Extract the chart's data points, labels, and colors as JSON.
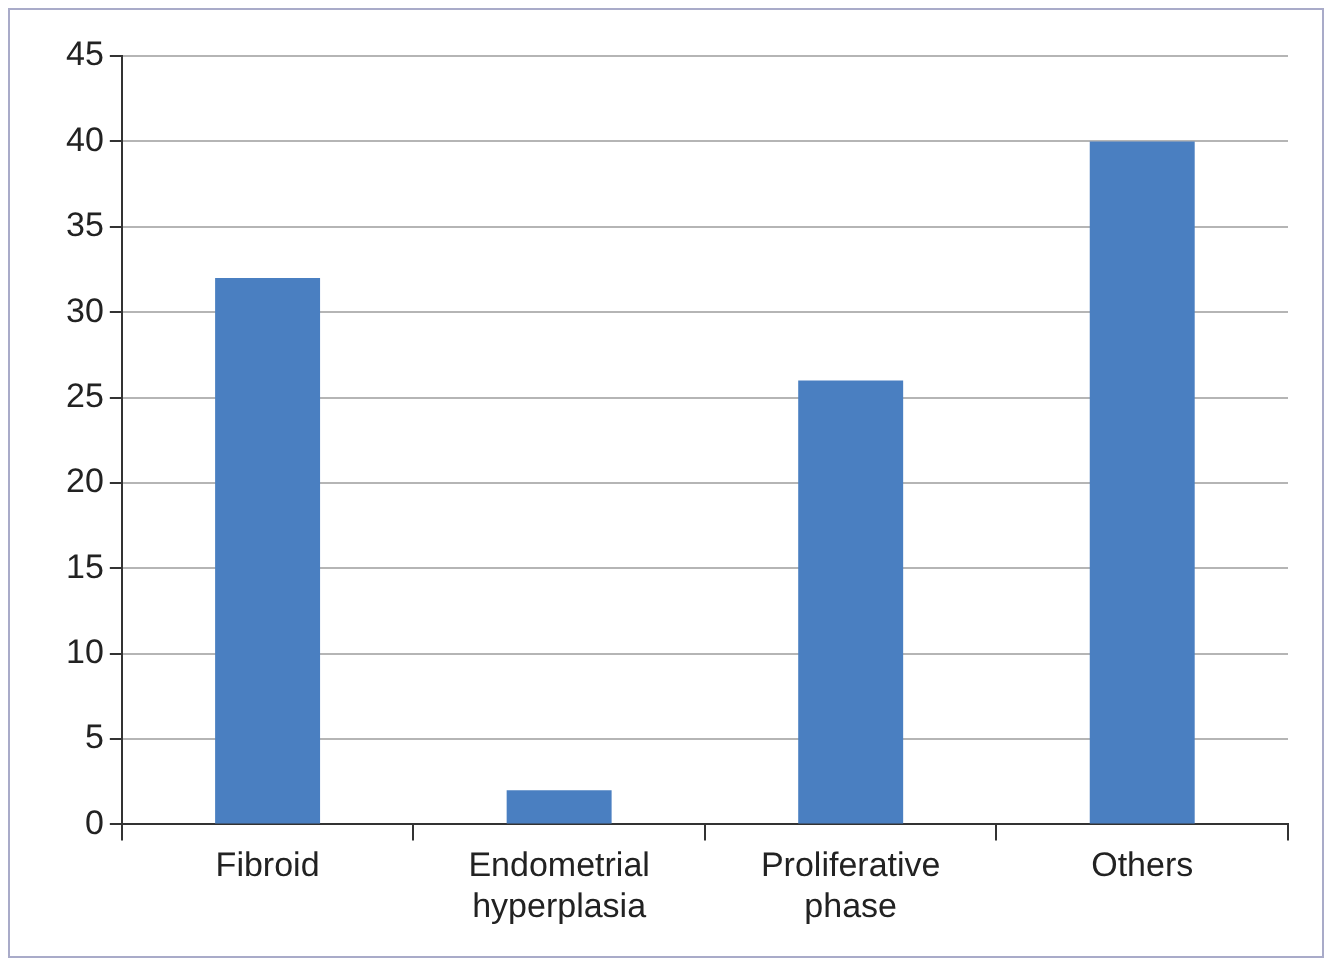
{
  "chart_data": {
    "type": "bar",
    "categories": [
      "Fibroid",
      "Endometrial hyperplasia",
      "Proliferative phase",
      "Others"
    ],
    "values": [
      32,
      2,
      26,
      40
    ],
    "color": "#4a7fc1",
    "ylim": [
      0,
      45
    ],
    "yticks": [
      0,
      5,
      10,
      15,
      20,
      25,
      30,
      35,
      40,
      45
    ],
    "grid": "y"
  }
}
